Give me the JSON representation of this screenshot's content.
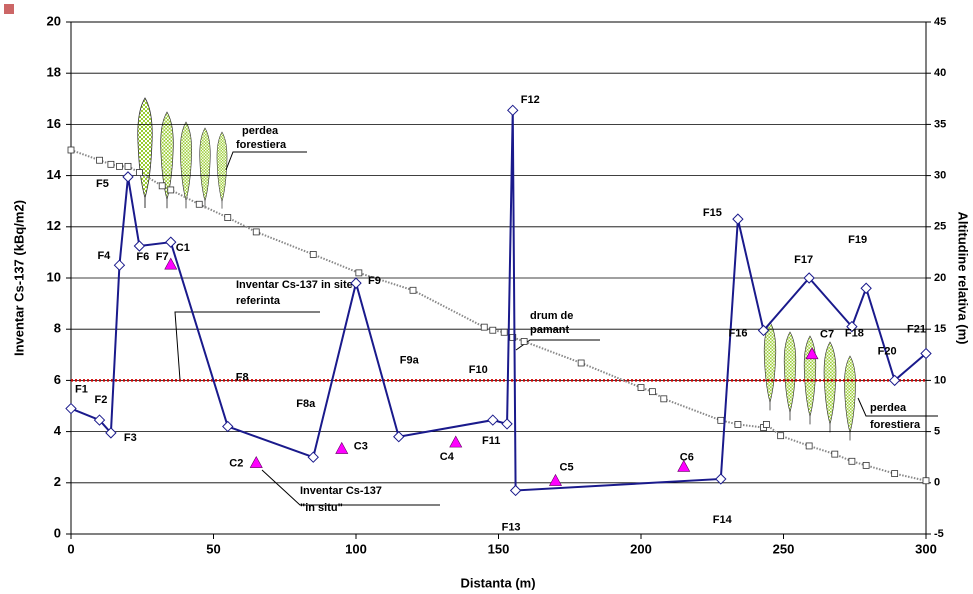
{
  "chart_data": {
    "type": "line",
    "xlabel": "Distanta (m)",
    "ylabel": "Inventar Cs-137 (kBq/m2)",
    "y2label": "Altitudine relativa (m)",
    "xlim": [
      0,
      300
    ],
    "xticks": [
      0,
      50,
      100,
      150,
      200,
      250,
      300
    ],
    "ylim": [
      0,
      20
    ],
    "yticks": [
      0,
      2,
      4,
      6,
      8,
      10,
      12,
      14,
      16,
      18,
      20
    ],
    "y2lim": [
      -5,
      45
    ],
    "y2ticks": [
      -5,
      0,
      5,
      10,
      15,
      20,
      25,
      30,
      35,
      40,
      45
    ],
    "grid": true,
    "series": [
      {
        "color": "#1a1a8c",
        "marker": "diamond",
        "line_style": "solid",
        "x": [
          0,
          10,
          14,
          17,
          20,
          24,
          35,
          55,
          85,
          100,
          115,
          148,
          153,
          155,
          156,
          228,
          234,
          243,
          259,
          274,
          279,
          289,
          300
        ],
        "values": [
          4.9,
          4.45,
          3.95,
          10.5,
          13.95,
          11.25,
          11.4,
          4.2,
          3.0,
          9.8,
          3.8,
          4.45,
          4.3,
          16.55,
          1.7,
          2.15,
          12.3,
          7.95,
          10.0,
          8.1,
          9.6,
          6.0,
          7.05
        ],
        "labels": [
          "F1",
          "F2",
          "F3",
          "F4",
          "F5",
          "F6",
          "F7",
          "F8",
          "F8a",
          "F9",
          "F9a",
          "F10",
          "F11",
          "F12",
          "F13",
          "F14",
          "F15",
          "F16",
          "F17",
          "F18",
          "F19",
          "F20",
          "F21"
        ]
      },
      {
        "color": "#ff00ff",
        "marker": "triangle",
        "line_style": "none",
        "x": [
          35,
          65,
          95,
          135,
          170,
          215,
          260
        ],
        "values": [
          10.5,
          2.75,
          3.3,
          3.55,
          2.05,
          2.6,
          7.0
        ],
        "labels": [
          "C1",
          "C2",
          "C3",
          "C4",
          "C5",
          "C6",
          "C7"
        ]
      },
      {
        "color": "#888888",
        "marker": "square",
        "line_style": "dotted",
        "axis": "y2",
        "x": [
          0,
          10,
          14,
          17,
          20,
          24,
          32,
          35,
          45,
          55,
          65,
          85,
          101,
          120,
          145,
          148,
          152,
          155,
          159,
          179,
          200,
          204,
          208,
          228,
          234,
          243,
          244,
          249,
          259,
          268,
          274,
          279,
          289,
          300
        ],
        "values": [
          32.5,
          31.5,
          31.1,
          30.9,
          30.9,
          30.3,
          29.0,
          28.6,
          27.2,
          25.9,
          24.5,
          22.3,
          20.5,
          18.8,
          15.2,
          14.9,
          14.7,
          14.2,
          13.8,
          11.7,
          9.3,
          8.9,
          8.2,
          6.1,
          5.7,
          5.4,
          5.7,
          4.6,
          3.6,
          2.8,
          2.1,
          1.7,
          0.9,
          0.2
        ]
      }
    ],
    "reference_line": {
      "value": 6.0,
      "color": "#cc0000"
    },
    "annotations": [
      "perdea",
      "forestiera",
      "Inventar Cs-137 in site",
      "referinta",
      "drum de",
      "pamant",
      "Inventar Cs-137",
      "\"in situ\"",
      "perdea",
      "forestiera"
    ]
  }
}
